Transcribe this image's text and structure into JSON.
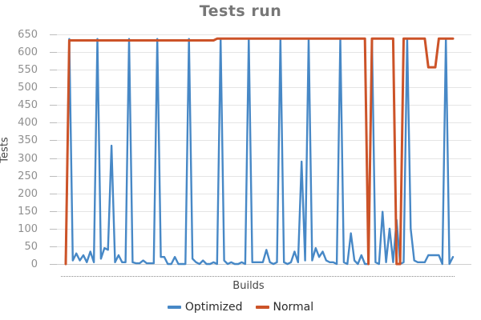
{
  "chart_title": "Tests run",
  "axes": {
    "y_title": "Tests",
    "x_title": "Builds"
  },
  "legend": {
    "items": [
      {
        "label": "Optimized",
        "color": "#4788c6"
      },
      {
        "label": "Normal",
        "color": "#cc5328"
      }
    ]
  },
  "chart_data": {
    "type": "line",
    "title": "Tests run",
    "xlabel": "Builds",
    "ylabel": "Tests",
    "ylim": [
      0,
      650
    ],
    "yticks": [
      0,
      50,
      100,
      150,
      200,
      250,
      300,
      350,
      400,
      450,
      500,
      550,
      600,
      650
    ],
    "x": "build sequence 1..111 (no x tick labels shown, one dotted tick per build)",
    "grid": "horizontal",
    "legend_position": "bottom",
    "series": [
      {
        "name": "Optimized",
        "color": "#4788c6",
        "stroke_width": 2.4,
        "values": [
          0,
          637,
          10,
          30,
          10,
          25,
          5,
          35,
          5,
          637,
          15,
          45,
          40,
          335,
          5,
          25,
          5,
          5,
          637,
          5,
          2,
          2,
          10,
          2,
          2,
          2,
          637,
          20,
          20,
          0,
          0,
          20,
          0,
          0,
          0,
          637,
          15,
          5,
          0,
          10,
          0,
          0,
          5,
          0,
          637,
          10,
          0,
          5,
          0,
          0,
          5,
          0,
          637,
          5,
          5,
          5,
          5,
          40,
          5,
          0,
          5,
          637,
          5,
          0,
          5,
          35,
          5,
          290,
          10,
          637,
          10,
          45,
          20,
          35,
          10,
          5,
          5,
          0,
          637,
          5,
          0,
          87,
          10,
          0,
          25,
          0,
          0,
          637,
          5,
          0,
          148,
          5,
          100,
          5,
          125,
          0,
          5,
          637,
          100,
          10,
          5,
          5,
          5,
          25,
          25,
          25,
          25,
          0,
          637,
          0,
          20
        ]
      },
      {
        "name": "Normal",
        "color": "#cc5328",
        "stroke_width": 3,
        "values": [
          0,
          633,
          633,
          633,
          633,
          633,
          633,
          633,
          633,
          633,
          633,
          633,
          633,
          633,
          633,
          633,
          633,
          633,
          633,
          633,
          633,
          633,
          633,
          633,
          633,
          633,
          633,
          633,
          633,
          633,
          633,
          633,
          633,
          633,
          633,
          633,
          633,
          633,
          633,
          633,
          633,
          633,
          633,
          638,
          638,
          638,
          638,
          638,
          638,
          638,
          638,
          638,
          638,
          638,
          638,
          638,
          638,
          638,
          638,
          638,
          638,
          638,
          638,
          638,
          638,
          638,
          638,
          638,
          638,
          638,
          638,
          638,
          638,
          638,
          638,
          638,
          638,
          638,
          638,
          638,
          638,
          638,
          638,
          638,
          638,
          638,
          0,
          638,
          638,
          638,
          638,
          638,
          638,
          638,
          0,
          0,
          638,
          638,
          638,
          638,
          638,
          638,
          638,
          557,
          557,
          557,
          638,
          638,
          638,
          638,
          638
        ]
      }
    ]
  }
}
